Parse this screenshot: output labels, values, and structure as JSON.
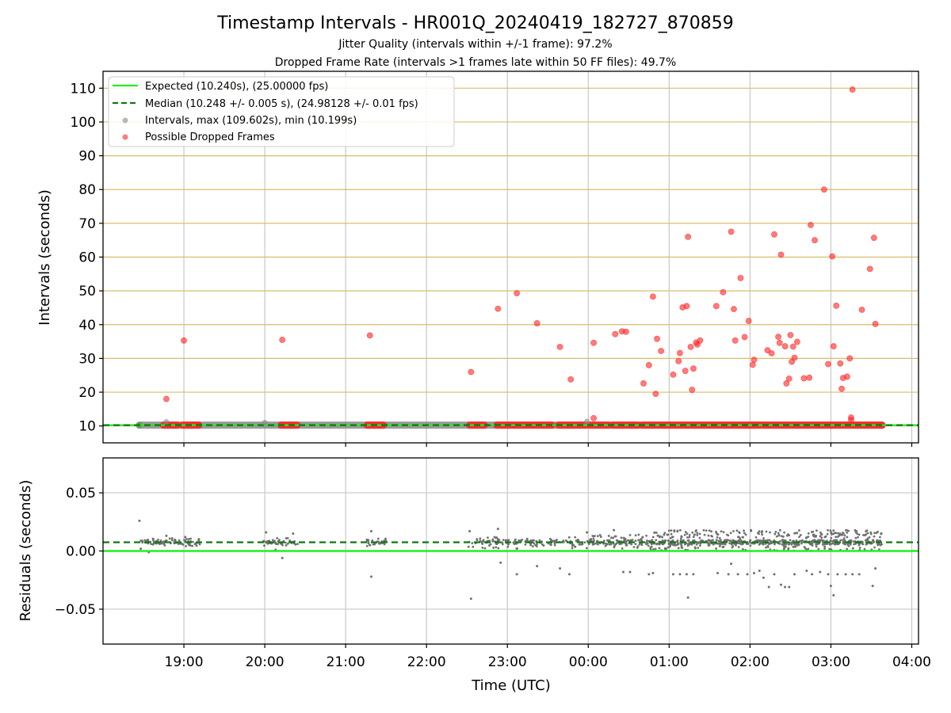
{
  "figure": {
    "title": "Timestamp Intervals - HR001Q_20240419_182727_870859",
    "subtitle1": "Jitter Quality (intervals within +/-1 frame): 97.2%",
    "subtitle2": "Dropped Frame Rate (intervals >1 frames late within 50 FF files): 49.7%"
  },
  "colors": {
    "expected": "#22ee22",
    "median": "#117711",
    "intervals": "#888888",
    "dropped": "#ff2222",
    "hgrid_top": "#d9bd6a",
    "grid": "#c8c8c8",
    "residual_points": "#707070"
  },
  "chart_data": [
    {
      "type": "scatter",
      "id": "intervals",
      "xlabel": "Time (UTC)",
      "ylabel": "Intervals (seconds)",
      "xlim": [
        "18:00",
        "04:05"
      ],
      "ylim": [
        5,
        115
      ],
      "x_ticks": [
        "19:00",
        "20:00",
        "21:00",
        "22:00",
        "23:00",
        "00:00",
        "01:00",
        "02:00",
        "03:00",
        "04:00"
      ],
      "y_ticks": [
        10,
        20,
        30,
        40,
        50,
        60,
        70,
        80,
        90,
        100,
        110
      ],
      "legend": {
        "placement": "top-left",
        "entries": [
          "Expected (10.240s), (25.00000 fps)",
          "Median (10.248 +/- 0.005 s), (24.98128 +/- 0.01 fps)",
          "Intervals, max (109.602s), min (10.199s)",
          "Possible Dropped Frames"
        ]
      },
      "expected_value": 10.24,
      "median_value": 10.248,
      "baseline_span": [
        "18:27",
        "03:38"
      ],
      "series": [
        {
          "name": "Possible Dropped Frames",
          "points": [
            [
              "18:47",
              18.0
            ],
            [
              "19:00",
              35.3
            ],
            [
              "20:13",
              35.5
            ],
            [
              "21:18",
              36.8
            ],
            [
              "22:33",
              26.0
            ],
            [
              "22:53",
              44.7
            ],
            [
              "23:07",
              49.3
            ],
            [
              "23:22",
              40.4
            ],
            [
              "23:39",
              33.4
            ],
            [
              "23:47",
              23.8
            ],
            [
              "00:04",
              12.3
            ],
            [
              "00:04",
              34.6
            ],
            [
              "00:20",
              37.2
            ],
            [
              "00:25",
              38.0
            ],
            [
              "00:28",
              37.9
            ],
            [
              "00:41",
              22.6
            ],
            [
              "00:45",
              28.0
            ],
            [
              "00:48",
              48.3
            ],
            [
              "00:50",
              19.5
            ],
            [
              "00:51",
              35.8
            ],
            [
              "00:54",
              32.2
            ],
            [
              "01:03",
              25.2
            ],
            [
              "01:07",
              29.2
            ],
            [
              "01:08",
              31.6
            ],
            [
              "01:10",
              45.1
            ],
            [
              "01:12",
              26.3
            ],
            [
              "01:13",
              45.5
            ],
            [
              "01:14",
              66.0
            ],
            [
              "01:16",
              33.4
            ],
            [
              "01:17",
              20.7
            ],
            [
              "01:18",
              27.0
            ],
            [
              "01:20",
              34.7
            ],
            [
              "01:21",
              34.1
            ],
            [
              "01:23",
              35.3
            ],
            [
              "01:35",
              45.5
            ],
            [
              "01:40",
              49.6
            ],
            [
              "01:46",
              67.5
            ],
            [
              "01:48",
              44.6
            ],
            [
              "01:49",
              35.3
            ],
            [
              "01:53",
              53.8
            ],
            [
              "01:56",
              36.3
            ],
            [
              "01:59",
              41.1
            ],
            [
              "02:02",
              28.1
            ],
            [
              "02:03",
              29.6
            ],
            [
              "02:13",
              32.4
            ],
            [
              "02:16",
              31.5
            ],
            [
              "02:18",
              66.7
            ],
            [
              "02:21",
              36.4
            ],
            [
              "02:22",
              34.6
            ],
            [
              "02:23",
              60.7
            ],
            [
              "02:26",
              33.6
            ],
            [
              "02:27",
              22.6
            ],
            [
              "02:29",
              24.0
            ],
            [
              "02:30",
              36.9
            ],
            [
              "02:31",
              29.0
            ],
            [
              "02:32",
              33.5
            ],
            [
              "02:33",
              30.2
            ],
            [
              "02:35",
              34.9
            ],
            [
              "02:40",
              24.1
            ],
            [
              "02:44",
              24.3
            ],
            [
              "02:45",
              69.5
            ],
            [
              "02:48",
              65.0
            ],
            [
              "02:55",
              80.0
            ],
            [
              "02:58",
              28.3
            ],
            [
              "03:01",
              60.2
            ],
            [
              "03:02",
              33.6
            ],
            [
              "03:04",
              45.6
            ],
            [
              "03:07",
              28.5
            ],
            [
              "03:08",
              21.0
            ],
            [
              "03:09",
              24.2
            ],
            [
              "03:12",
              24.6
            ],
            [
              "03:14",
              30.0
            ],
            [
              "03:15",
              12.5
            ],
            [
              "03:15",
              11.8
            ],
            [
              "03:16",
              109.6
            ],
            [
              "03:23",
              44.4
            ],
            [
              "03:29",
              56.5
            ],
            [
              "03:32",
              65.7
            ],
            [
              "03:33",
              40.2
            ]
          ]
        },
        {
          "name": "Intervals, max (109.602s), min (10.199s)",
          "points": [
            [
              "18:47",
              11.2
            ],
            [
              "20:00",
              11.0
            ],
            [
              "23:59",
              11.3
            ]
          ]
        }
      ],
      "baseline_dropped_segments": [
        [
          "18:45",
          "18:55"
        ],
        [
          "18:59",
          "19:11"
        ],
        [
          "20:12",
          "20:24"
        ],
        [
          "21:16",
          "21:28"
        ],
        [
          "22:32",
          "22:43"
        ],
        [
          "22:52",
          "23:04"
        ],
        [
          "23:06",
          "23:18"
        ],
        [
          "23:20",
          "23:33"
        ],
        [
          "23:38",
          "23:58"
        ],
        [
          "00:01",
          "00:15"
        ],
        [
          "00:18",
          "00:37"
        ],
        [
          "00:40",
          "03:38"
        ]
      ]
    },
    {
      "type": "scatter",
      "id": "residuals",
      "xlabel": "Time (UTC)",
      "ylabel": "Residuals (seconds)",
      "xlim": [
        "18:00",
        "04:05"
      ],
      "ylim": [
        -0.08,
        0.08
      ],
      "x_ticks": [
        "19:00",
        "20:00",
        "21:00",
        "22:00",
        "23:00",
        "00:00",
        "01:00",
        "02:00",
        "03:00",
        "04:00"
      ],
      "y_ticks": [
        -0.05,
        0.0,
        0.05
      ],
      "y_tick_labels": [
        "−0.05",
        "0.00",
        "0.05"
      ],
      "zero_value": 0.0,
      "median_value": 0.0075,
      "outliers": [
        [
          "18:27",
          0.026
        ],
        [
          "18:28",
          0.002
        ],
        [
          "18:34",
          -0.001
        ],
        [
          "18:47",
          0.013
        ],
        [
          "19:01",
          0.012
        ],
        [
          "20:01",
          0.016
        ],
        [
          "20:08",
          0.001
        ],
        [
          "20:13",
          -0.006
        ],
        [
          "20:21",
          0.015
        ],
        [
          "21:19",
          0.017
        ],
        [
          "21:19",
          -0.022
        ],
        [
          "22:32",
          0.017
        ],
        [
          "22:33",
          -0.041
        ],
        [
          "22:53",
          0.019
        ],
        [
          "22:55",
          -0.01
        ],
        [
          "23:07",
          -0.02
        ],
        [
          "23:22",
          -0.013
        ],
        [
          "23:39",
          -0.015
        ],
        [
          "23:46",
          -0.02
        ],
        [
          "23:59",
          0.016
        ],
        [
          "00:04",
          0.008
        ],
        [
          "00:19",
          0.018
        ],
        [
          "00:26",
          -0.018
        ],
        [
          "00:31",
          -0.018
        ],
        [
          "00:45",
          -0.02
        ],
        [
          "00:48",
          -0.019
        ],
        [
          "01:03",
          -0.02
        ],
        [
          "01:08",
          -0.02
        ],
        [
          "01:13",
          -0.02
        ],
        [
          "01:14",
          -0.04
        ],
        [
          "01:18",
          -0.02
        ],
        [
          "01:36",
          -0.019
        ],
        [
          "01:44",
          -0.02
        ],
        [
          "01:46",
          -0.011
        ],
        [
          "01:51",
          -0.02
        ],
        [
          "01:58",
          -0.02
        ],
        [
          "02:03",
          -0.019
        ],
        [
          "02:07",
          -0.017
        ],
        [
          "02:10",
          -0.023
        ],
        [
          "02:14",
          -0.031
        ],
        [
          "02:18",
          -0.02
        ],
        [
          "02:23",
          -0.029
        ],
        [
          "02:26",
          -0.031
        ],
        [
          "02:29",
          -0.031
        ],
        [
          "02:33",
          -0.02
        ],
        [
          "02:42",
          -0.017
        ],
        [
          "02:46",
          -0.02
        ],
        [
          "02:52",
          -0.018
        ],
        [
          "02:58",
          -0.02
        ],
        [
          "03:00",
          -0.03
        ],
        [
          "03:02",
          -0.038
        ],
        [
          "03:05",
          -0.02
        ],
        [
          "03:11",
          -0.02
        ],
        [
          "03:16",
          -0.02
        ],
        [
          "03:21",
          -0.02
        ],
        [
          "03:31",
          -0.03
        ],
        [
          "03:33",
          -0.015
        ]
      ]
    }
  ]
}
